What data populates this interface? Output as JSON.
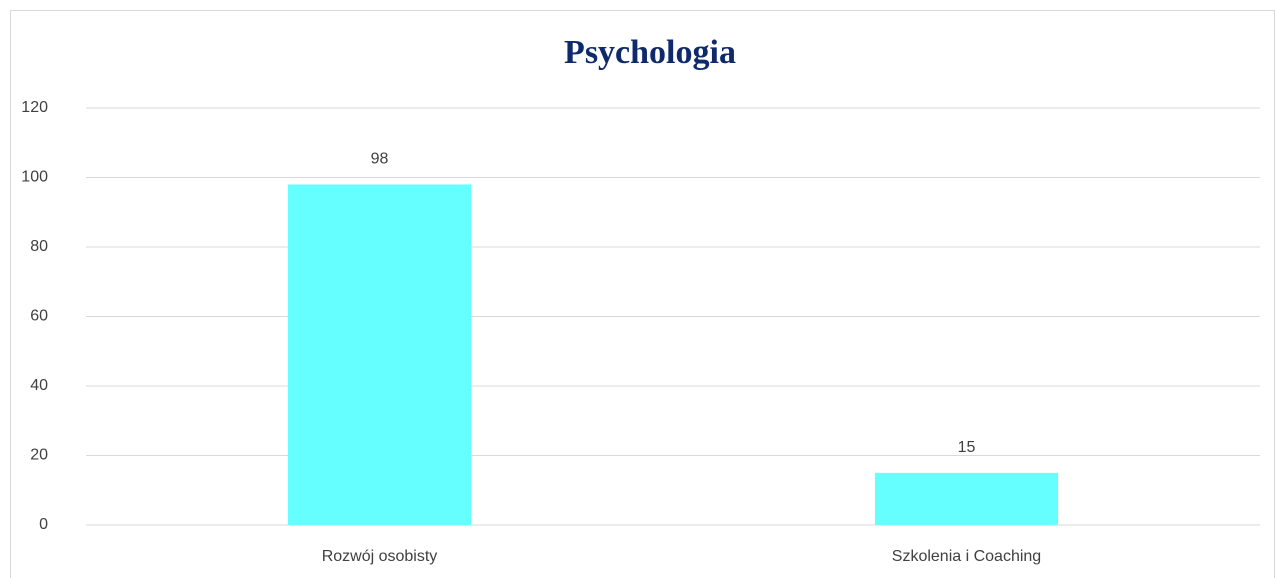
{
  "chart_data": {
    "type": "bar",
    "title": "Psychologia",
    "categories": [
      "Rozwój osobisty",
      "Szkolenia i Coaching"
    ],
    "values": [
      98,
      15
    ],
    "color": "#66ffff",
    "ylim": [
      0,
      120
    ],
    "yticks": [
      0,
      20,
      40,
      60,
      80,
      100,
      120
    ],
    "grid": true
  }
}
